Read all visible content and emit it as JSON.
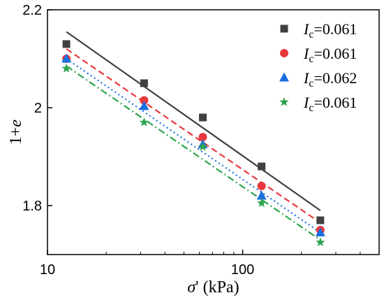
{
  "chart_data": {
    "type": "scatter",
    "xscale": "log",
    "xlim": [
      10,
      500
    ],
    "ylim": [
      1.7,
      2.2
    ],
    "xticks": [
      10,
      100
    ],
    "xtick_labels": [
      "10",
      "100"
    ],
    "yticks": [
      1.8,
      2.0,
      2.2
    ],
    "ytick_labels": [
      "1.8",
      "2",
      "2.2"
    ],
    "xlabel": "σ' (kPa)",
    "ylabel": "1+e",
    "legend_position": "top-right",
    "grid": false,
    "x": [
      12.5,
      31.25,
      62.5,
      125,
      250
    ],
    "series": [
      {
        "name": "Ic=0.061",
        "marker": "square",
        "color": "#404040",
        "line_style": "solid",
        "values": [
          2.13,
          2.05,
          1.98,
          1.88,
          1.77
        ],
        "fit": [
          2.155,
          1.79
        ]
      },
      {
        "name": "Ic=0.061",
        "marker": "circle",
        "color": "#e8383d",
        "line_style": "dashed",
        "values": [
          2.1,
          2.015,
          1.94,
          1.84,
          1.75
        ],
        "fit": [
          2.12,
          1.765
        ]
      },
      {
        "name": "Ic=0.062",
        "marker": "triangle",
        "color": "#1a6fe0",
        "line_style": "dotted",
        "values": [
          2.1,
          2.003,
          1.925,
          1.82,
          1.745
        ],
        "fit": [
          2.1,
          1.745
        ]
      },
      {
        "name": "Ic=0.061",
        "marker": "star",
        "color": "#2ea44f",
        "line_style": "dash-dot",
        "values": [
          2.08,
          1.97,
          1.92,
          1.805,
          1.725
        ],
        "fit": [
          2.085,
          1.73
        ]
      }
    ]
  }
}
